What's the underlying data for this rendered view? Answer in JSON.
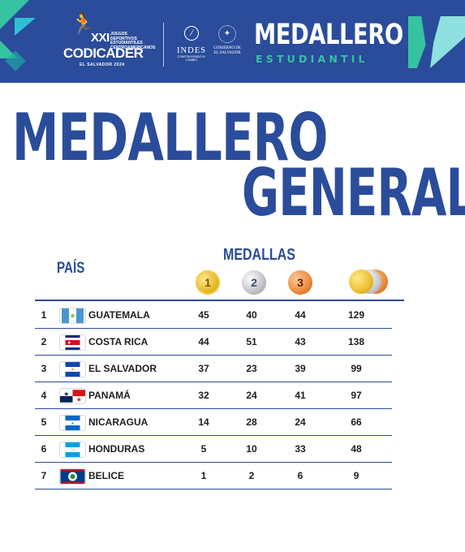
{
  "banner": {
    "codicader_edition": "XXI",
    "codicader_small": "JUEGOS DEPORTIVOS ESTUDIANTILES CENTROAMERICANOS",
    "codicader_name": "CODICADER",
    "codicader_sub": "EL SALVADOR 2024",
    "indes_text": "INDES",
    "indes_tagline": "CONSTRUYENDO EL CAMBIO",
    "gob_text": "GOBIERNO DE EL SALVADOR",
    "medallero": "MEDALLERO",
    "estudiantil": "ESTUDIANTIL"
  },
  "title": {
    "line1": "MEDALLERO",
    "line2": "GENERAL"
  },
  "table": {
    "header_country": "PAÍS",
    "header_medals": "MEDALLAS",
    "medal_labels": {
      "gold": "1",
      "silver": "2",
      "bronze": "3"
    },
    "rows": [
      {
        "rank": "1",
        "country": "GUATEMALA",
        "flag": "guatemala-flag",
        "gold": "45",
        "silver": "40",
        "bronze": "44",
        "total": "129"
      },
      {
        "rank": "2",
        "country": "COSTA RICA",
        "flag": "costa-rica-flag",
        "gold": "44",
        "silver": "51",
        "bronze": "43",
        "total": "138"
      },
      {
        "rank": "3",
        "country": "EL SALVADOR",
        "flag": "el-salvador-flag",
        "gold": "37",
        "silver": "23",
        "bronze": "39",
        "total": "99"
      },
      {
        "rank": "4",
        "country": "PANAMÁ",
        "flag": "panama-flag",
        "gold": "32",
        "silver": "24",
        "bronze": "41",
        "total": "97"
      },
      {
        "rank": "5",
        "country": "NICARAGUA",
        "flag": "nicaragua-flag",
        "gold": "14",
        "silver": "28",
        "bronze": "24",
        "total": "66"
      },
      {
        "rank": "6",
        "country": "HONDURAS",
        "flag": "honduras-flag",
        "gold": "5",
        "silver": "10",
        "bronze": "33",
        "total": "48"
      },
      {
        "rank": "7",
        "country": "BELICE",
        "flag": "belize-flag",
        "gold": "1",
        "silver": "2",
        "bronze": "6",
        "total": "9"
      }
    ]
  },
  "colors": {
    "brand_blue": "#2a4c9a",
    "accent_green": "#35c3a1",
    "gold": "#e4b628",
    "silver": "#c0c2c7",
    "bronze": "#ec8a3c"
  }
}
